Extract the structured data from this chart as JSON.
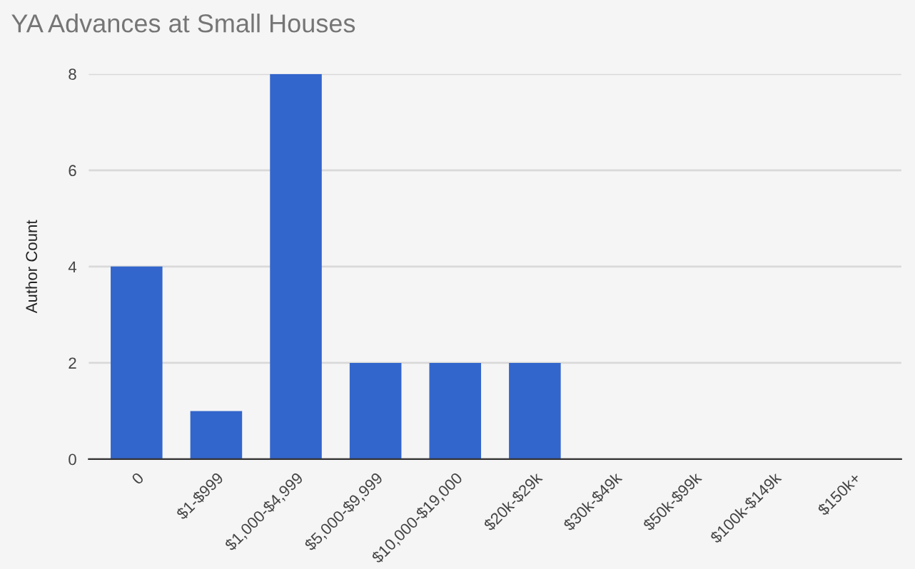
{
  "chart_data": {
    "type": "bar",
    "title": "YA Advances at Small Houses",
    "ylabel": "Author Count",
    "categories": [
      "0",
      "$1-$999",
      "$1,000-$4,999",
      "$5,000-$9,999",
      "$10,000-$19,000",
      "$20k-$29k",
      "$30k-$49k",
      "$50k-$99k",
      "$100k-$149k",
      "$150k+"
    ],
    "values": [
      4,
      1,
      8,
      2,
      2,
      2,
      0,
      0,
      0,
      0
    ],
    "color": "#3366cc",
    "ylim": [
      0,
      8
    ],
    "yticks": [
      0,
      2,
      4,
      6,
      8
    ],
    "grid": "y",
    "legend": false
  }
}
